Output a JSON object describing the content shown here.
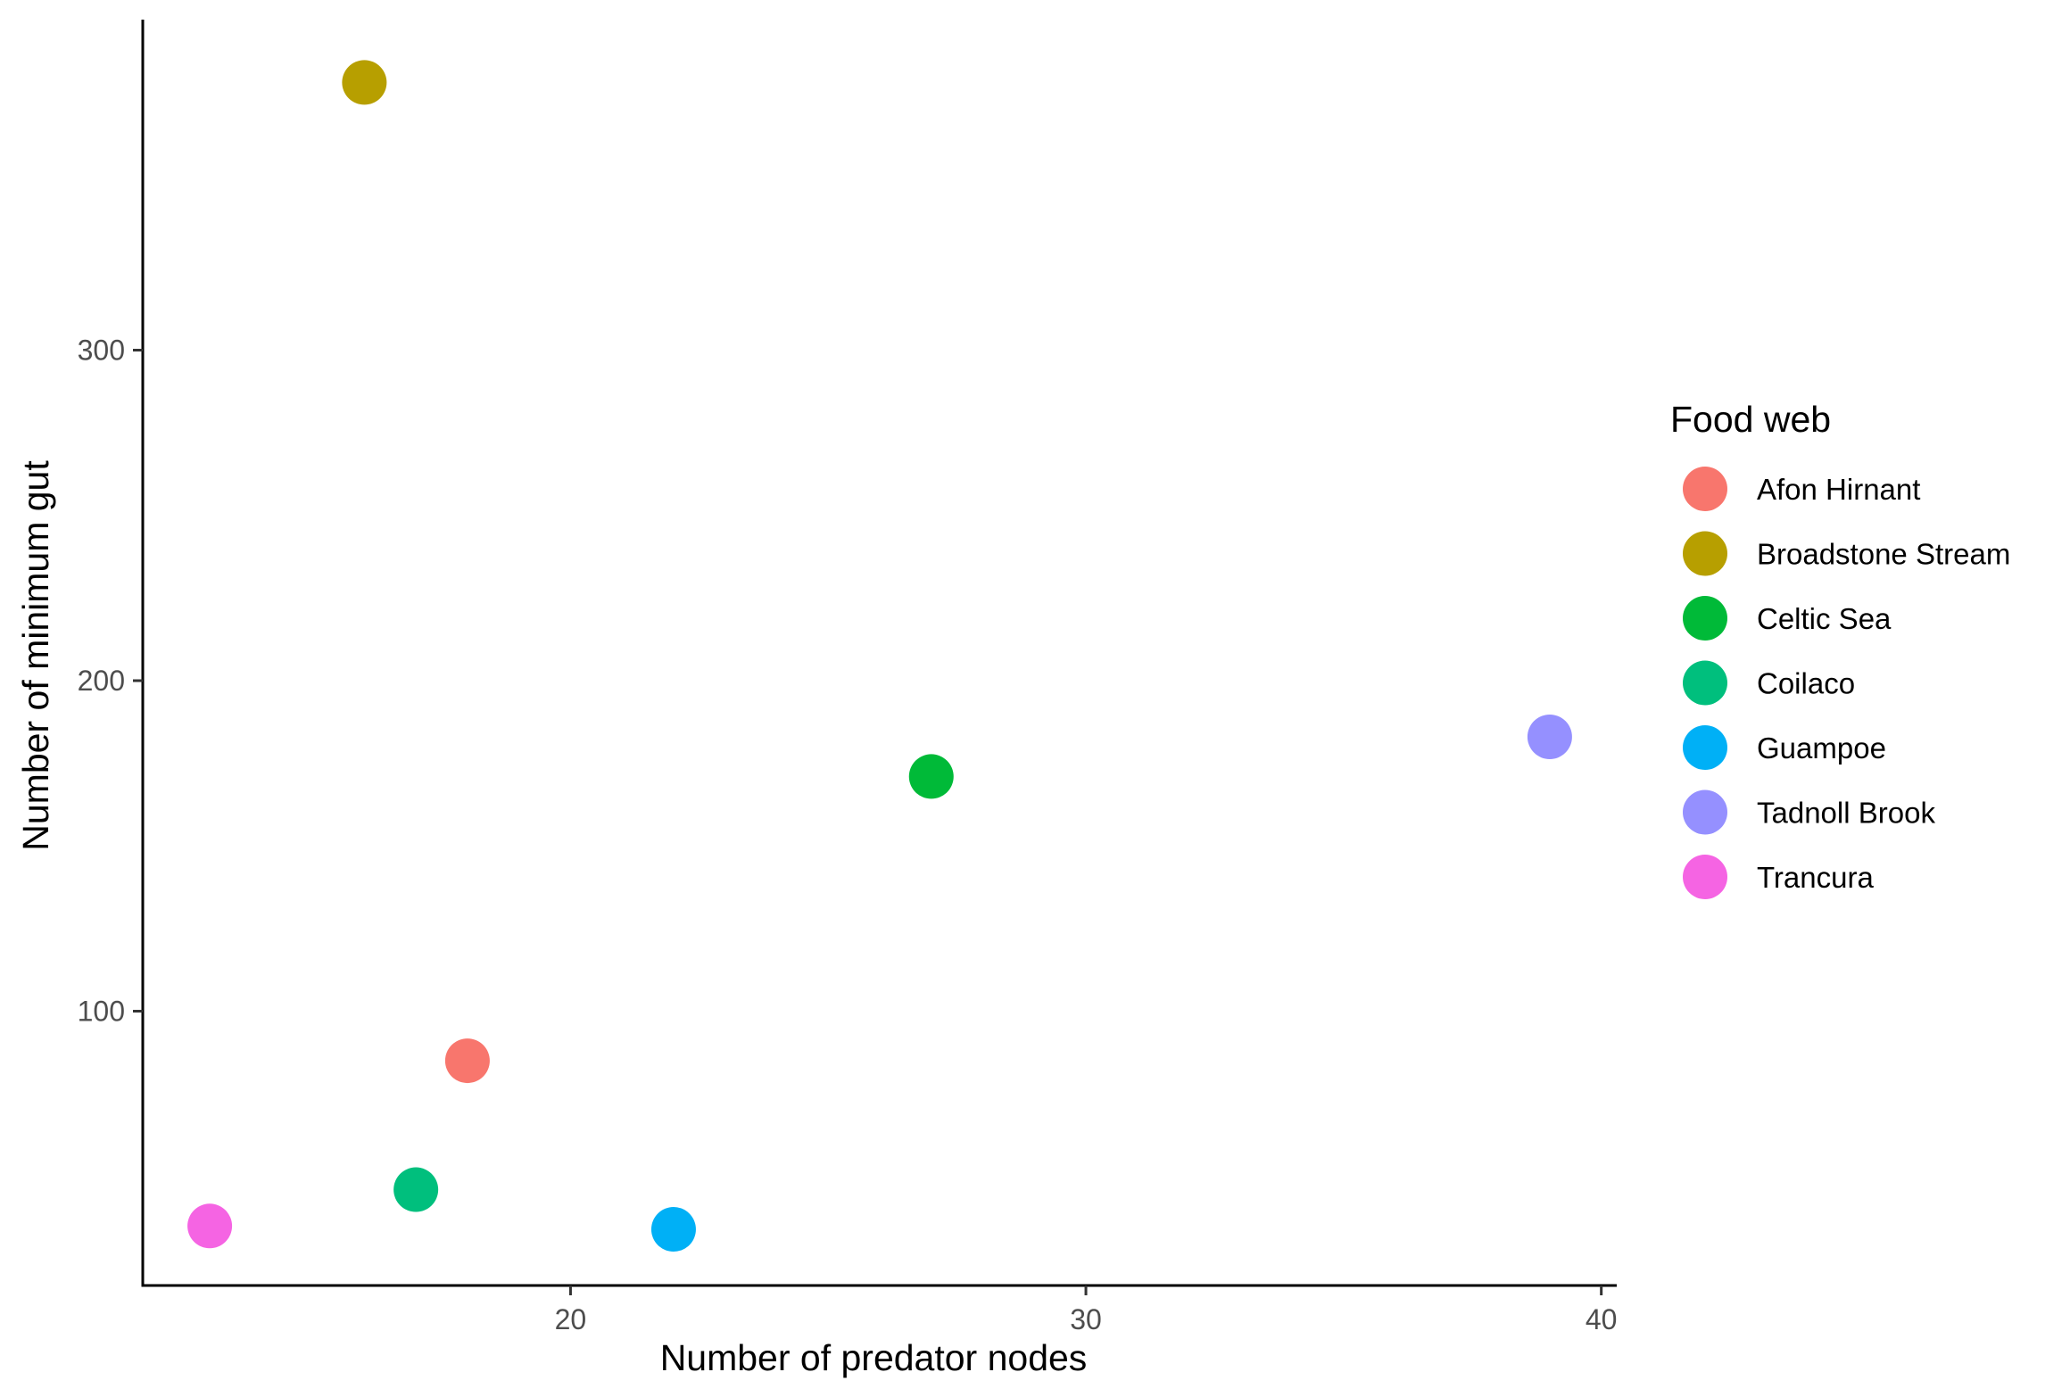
{
  "chart_data": {
    "type": "scatter",
    "title": "",
    "xlabel": "Number of predator nodes",
    "ylabel": "Number of minimum gut",
    "xlim": [
      11.7,
      40.3
    ],
    "ylim": [
      17,
      400
    ],
    "x_ticks": [
      20,
      30,
      40
    ],
    "y_ticks": [
      100,
      200,
      300
    ],
    "grid": false,
    "legend": {
      "title": "Food web",
      "position": "right"
    },
    "series": [
      {
        "name": "Afon Hirnant",
        "color": "#F8766D",
        "x": [
          18
        ],
        "y": [
          85
        ]
      },
      {
        "name": "Broadstone Stream",
        "color": "#B79F00",
        "x": [
          16
        ],
        "y": [
          381
        ]
      },
      {
        "name": "Celtic Sea",
        "color": "#00BA38",
        "x": [
          27
        ],
        "y": [
          171
        ]
      },
      {
        "name": "Coilaco",
        "color": "#00BF7D",
        "x": [
          17
        ],
        "y": [
          46
        ]
      },
      {
        "name": "Guampoe",
        "color": "#00B0F6",
        "x": [
          22
        ],
        "y": [
          34
        ]
      },
      {
        "name": "Tadnoll Brook",
        "color": "#9590FF",
        "x": [
          39
        ],
        "y": [
          183
        ]
      },
      {
        "name": "Trancura",
        "color": "#F564E3",
        "x": [
          13
        ],
        "y": [
          35
        ]
      }
    ]
  }
}
